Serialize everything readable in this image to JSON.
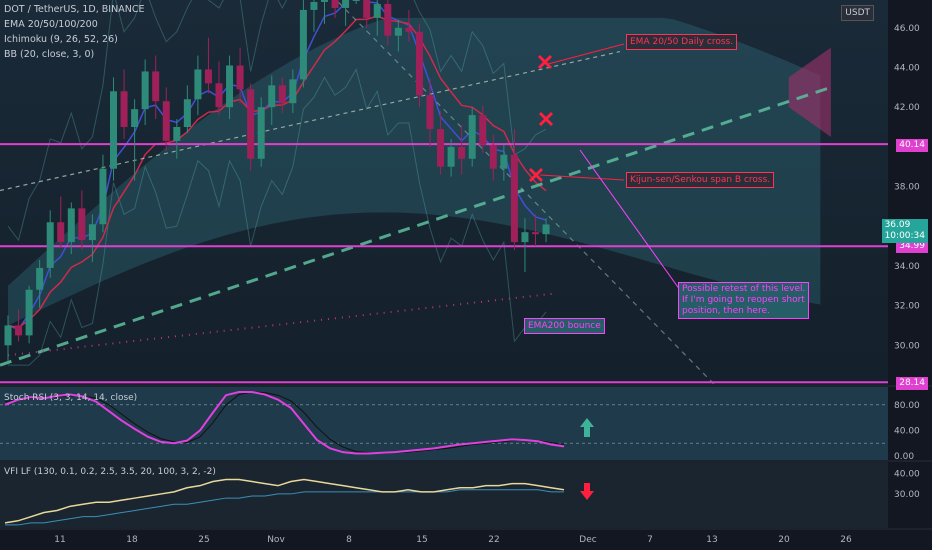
{
  "header": {
    "symbol_line": "DOT / TetherUS, 1D, BINANCE",
    "indicators": [
      "EMA 20/50/100/200",
      "Ichimoku (9, 26, 52, 26)",
      "BB (20, close, 3, 0)"
    ]
  },
  "currency": "USDT",
  "chart_data": {
    "type": "candlestick",
    "price_axis": {
      "min": 28.0,
      "max": 47.4,
      "ticks": [
        "46.00",
        "44.00",
        "42.00",
        "38.00",
        "34.00",
        "32.00",
        "30.00"
      ]
    },
    "time_axis": [
      "11",
      "18",
      "25",
      "Nov",
      "8",
      "15",
      "22",
      "Dec",
      "7",
      "13",
      "20",
      "26"
    ],
    "horizontal_levels": [
      {
        "value": 40.14,
        "label": "40.14",
        "color": "#e040d0"
      },
      {
        "value": 34.99,
        "label": "34.99",
        "color": "#e040d0"
      },
      {
        "value": 28.14,
        "label": "28.14",
        "color": "#e040d0"
      }
    ],
    "last_price": {
      "value": 36.09,
      "label": "36.09",
      "countdown": "10:00:34",
      "color": "#26a69a"
    },
    "candles": [
      [
        30.0,
        31.5,
        29.2,
        31.0
      ],
      [
        31.0,
        31.8,
        30.2,
        30.5
      ],
      [
        30.5,
        33.0,
        30.1,
        32.8
      ],
      [
        32.8,
        34.3,
        31.9,
        33.9
      ],
      [
        33.9,
        36.8,
        33.4,
        36.2
      ],
      [
        36.2,
        37.5,
        34.9,
        35.2
      ],
      [
        35.2,
        37.2,
        34.6,
        36.9
      ],
      [
        36.9,
        37.8,
        34.8,
        35.3
      ],
      [
        35.3,
        36.6,
        34.2,
        36.1
      ],
      [
        36.1,
        39.6,
        35.7,
        38.9
      ],
      [
        38.9,
        43.5,
        38.3,
        42.8
      ],
      [
        42.8,
        43.9,
        40.4,
        41.0
      ],
      [
        41.0,
        42.4,
        38.3,
        41.9
      ],
      [
        41.9,
        44.4,
        41.1,
        43.8
      ],
      [
        43.8,
        44.6,
        41.4,
        42.3
      ],
      [
        42.3,
        43.0,
        39.8,
        40.3
      ],
      [
        40.3,
        41.4,
        39.4,
        41.0
      ],
      [
        41.0,
        43.1,
        40.7,
        42.4
      ],
      [
        42.4,
        44.6,
        41.6,
        43.9
      ],
      [
        43.9,
        45.5,
        42.7,
        43.2
      ],
      [
        43.2,
        44.3,
        41.6,
        42.0
      ],
      [
        42.0,
        44.6,
        41.4,
        44.1
      ],
      [
        44.1,
        45.0,
        42.2,
        42.9
      ],
      [
        42.9,
        43.2,
        38.8,
        39.4
      ],
      [
        39.4,
        42.5,
        39.0,
        42.0
      ],
      [
        42.0,
        43.6,
        41.1,
        43.1
      ],
      [
        43.1,
        43.5,
        41.7,
        42.2
      ],
      [
        42.2,
        43.9,
        41.7,
        43.4
      ],
      [
        43.4,
        47.4,
        43.0,
        46.9
      ],
      [
        46.9,
        48.2,
        45.8,
        47.3
      ],
      [
        47.3,
        48.9,
        46.2,
        48.1
      ],
      [
        48.1,
        49.0,
        46.5,
        47.0
      ],
      [
        47.0,
        48.6,
        46.1,
        48.0
      ],
      [
        48.0,
        49.1,
        47.2,
        48.7
      ],
      [
        48.7,
        48.9,
        46.0,
        46.5
      ],
      [
        46.5,
        47.6,
        45.6,
        47.2
      ],
      [
        47.2,
        47.7,
        45.1,
        45.6
      ],
      [
        45.6,
        46.4,
        44.8,
        46.0
      ],
      [
        46.0,
        46.9,
        45.3,
        45.8
      ],
      [
        45.8,
        46.2,
        42.0,
        42.6
      ],
      [
        42.6,
        43.4,
        40.0,
        40.9
      ],
      [
        40.9,
        41.8,
        38.6,
        39.0
      ],
      [
        39.0,
        40.4,
        38.5,
        40.0
      ],
      [
        40.0,
        41.1,
        38.6,
        39.4
      ],
      [
        39.4,
        42.0,
        39.0,
        41.6
      ],
      [
        41.6,
        42.1,
        39.7,
        40.1
      ],
      [
        40.1,
        40.6,
        38.3,
        38.9
      ],
      [
        38.9,
        40.1,
        38.3,
        39.6
      ],
      [
        39.6,
        40.9,
        34.8,
        35.2
      ],
      [
        35.2,
        36.4,
        33.7,
        35.7
      ],
      [
        35.7,
        36.6,
        35.0,
        35.6
      ],
      [
        35.6,
        36.4,
        35.2,
        36.09
      ]
    ],
    "annotations": [
      "EMA 20/50 Daily cross.",
      "Kijun-sen/Senkou span B cross.",
      "Possible retest of this level.\nIf I'm going to reopen short\nposition, then here.",
      "EMA200 bounce"
    ]
  },
  "stoch_panel": {
    "title": "Stoch RSI (3, 3, 14, 14, close)",
    "ticks": [
      "80.00",
      "40.00",
      "0.00"
    ],
    "k_values": [
      80,
      88,
      92,
      90,
      94,
      96,
      93,
      85,
      70,
      55,
      42,
      30,
      22,
      20,
      24,
      40,
      68,
      95,
      100,
      100,
      96,
      88,
      75,
      50,
      25,
      12,
      6,
      4,
      4,
      5,
      6,
      8,
      10,
      12,
      15,
      18,
      20,
      22,
      24,
      26,
      25,
      23,
      18,
      15
    ],
    "d_values": [
      85,
      88,
      90,
      90,
      92,
      94,
      94,
      90,
      80,
      65,
      50,
      37,
      27,
      22,
      21,
      30,
      52,
      80,
      96,
      100,
      99,
      95,
      86,
      68,
      45,
      26,
      14,
      7,
      5,
      4,
      5,
      6,
      8,
      10,
      12,
      15,
      18,
      20,
      22,
      24,
      25,
      24,
      21,
      18
    ]
  },
  "vfi_panel": {
    "title": "VFI LF (130, 0.1, 0.2, 2.5, 3.5, 20, 100, 3, 2, -2)",
    "ticks": [
      "40.00",
      "30.00"
    ],
    "vfi_values": [
      16,
      17,
      19,
      21,
      22,
      24,
      25,
      26,
      26,
      27,
      28,
      29,
      30,
      31,
      33,
      34,
      36,
      37,
      37,
      36,
      35,
      34,
      36,
      37,
      36,
      35,
      34,
      33,
      32,
      31,
      31,
      32,
      31,
      31,
      32,
      33,
      33,
      34,
      34,
      35,
      35,
      34,
      33,
      32
    ],
    "signal_values": [
      15,
      15,
      16,
      16,
      17,
      18,
      19,
      19,
      20,
      21,
      22,
      23,
      24,
      25,
      25,
      26,
      27,
      28,
      28,
      29,
      29,
      30,
      30,
      31,
      31,
      31,
      31,
      31,
      31,
      31,
      31,
      31,
      31,
      31,
      31,
      32,
      32,
      32,
      32,
      32,
      32,
      32,
      31,
      31
    ]
  }
}
